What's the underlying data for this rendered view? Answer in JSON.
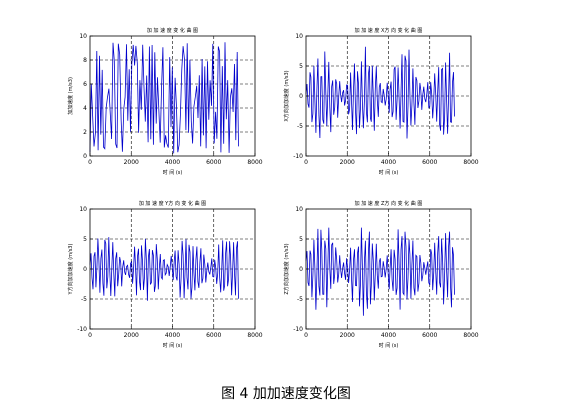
{
  "figure": {
    "caption": "图 4  加加速度变化图"
  },
  "chart_data": [
    {
      "type": "line",
      "title": "加 加 速 度 变 化 曲 图",
      "xlabel": "时 间 (s)",
      "ylabel": "加加速度 (m/s3)",
      "xlim": [
        0,
        8000
      ],
      "ylim": [
        0,
        10
      ],
      "xticks": [
        "0",
        "2000",
        "4000",
        "6000",
        "8000"
      ],
      "yticks": [
        "0",
        "2",
        "4",
        "6",
        "8",
        "10"
      ],
      "grid": "dashed",
      "signal": {
        "kind": "dense-oscillation",
        "x_start": 0,
        "x_end": 7200,
        "min": 0.2,
        "max": 9.6
      },
      "series": [
        {
          "color": "#0000cc"
        }
      ]
    },
    {
      "type": "line",
      "title": "加 加 速 度 X方 向 变 化 曲 图",
      "xlabel": "时 间 (s)",
      "ylabel": "X方向加加速度 (m/s3)",
      "xlim": [
        0,
        8000
      ],
      "ylim": [
        -10,
        10
      ],
      "xticks": [
        "0",
        "2000",
        "4000",
        "6000",
        "8000"
      ],
      "yticks": [
        "-10",
        "-5",
        "0",
        "5",
        "10"
      ],
      "grid": "dashed",
      "signal": {
        "kind": "bursts",
        "x_start": 0,
        "x_end": 7200,
        "min": -8.5,
        "max": 8.5
      },
      "series": [
        {
          "color": "#0000cc"
        }
      ]
    },
    {
      "type": "line",
      "title": "加 加 速 度 Y方 向 变 化 曲 图",
      "xlabel": "时 间 (s)",
      "ylabel": "Y方向加加速度 (m/s3)",
      "xlim": [
        0,
        8000
      ],
      "ylim": [
        -10,
        10
      ],
      "xticks": [
        "0",
        "2000",
        "4000",
        "6000",
        "8000"
      ],
      "yticks": [
        "-10",
        "-5",
        "0",
        "5",
        "10"
      ],
      "grid": "dashed",
      "signal": {
        "kind": "bursts",
        "x_start": 0,
        "x_end": 7200,
        "min": -6.5,
        "max": 6.0
      },
      "series": [
        {
          "color": "#0000cc"
        }
      ]
    },
    {
      "type": "line",
      "title": "加 加 速 度 Z方 向 变 化 曲 图",
      "xlabel": "时 间 (s)",
      "ylabel": "Z方向加加速度 (m/s3)",
      "xlim": [
        0,
        8000
      ],
      "ylim": [
        -10,
        10
      ],
      "xticks": [
        "0",
        "2000",
        "4000",
        "6000",
        "8000"
      ],
      "yticks": [
        "-10",
        "-5",
        "0",
        "5",
        "10"
      ],
      "grid": "dashed",
      "signal": {
        "kind": "bursts",
        "x_start": 0,
        "x_end": 7200,
        "min": -8.0,
        "max": 8.0
      },
      "series": [
        {
          "color": "#0000cc"
        }
      ]
    }
  ]
}
